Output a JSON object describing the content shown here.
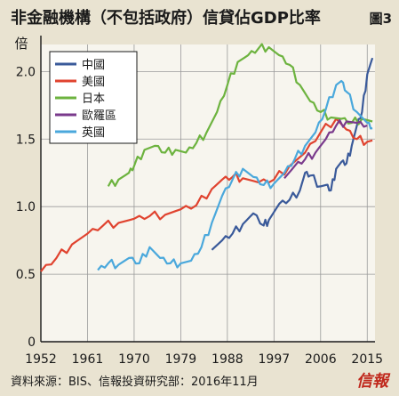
{
  "title": "非金融機構（不包括政府）信貸佔GDP比率",
  "figure_label": "圖3",
  "footer_source": "資料來源：BIS、信報投資研究部：2016年11月",
  "footer_logo": "信報",
  "colors": {
    "china": "#3a5a9a",
    "us": "#e0432f",
    "japan": "#6db33f",
    "euro": "#7a3a8c",
    "uk": "#4aa8dc"
  },
  "chart_data": {
    "type": "line",
    "title": "",
    "ylabel": "倍",
    "xlabel": "",
    "xlim": [
      1952,
      2016.5
    ],
    "ylim": [
      0,
      2.2
    ],
    "x_ticks": [
      1952,
      1961,
      1970,
      1979,
      1988,
      1997,
      2006,
      2015
    ],
    "y_ticks": [
      0,
      0.5,
      1.0,
      1.5,
      2.0
    ],
    "y_tick_labels": [
      "0",
      "0.5",
      "1.0",
      "1.5",
      "2.0"
    ],
    "grid": true,
    "legend_position": "top-left",
    "series": [
      {
        "name": "中國",
        "color": "#3a5a9a",
        "points": [
          [
            1985,
            0.68
          ],
          [
            1987,
            0.75
          ],
          [
            1989,
            0.8
          ],
          [
            1991,
            0.87
          ],
          [
            1993,
            0.95
          ],
          [
            1995,
            0.86
          ],
          [
            1996,
            0.9
          ],
          [
            1998,
            1.02
          ],
          [
            2000,
            1.05
          ],
          [
            2002,
            1.12
          ],
          [
            2003,
            1.25
          ],
          [
            2004,
            1.23
          ],
          [
            2006,
            1.15
          ],
          [
            2007,
            1.16
          ],
          [
            2008,
            1.12
          ],
          [
            2009,
            1.28
          ],
          [
            2010,
            1.33
          ],
          [
            2011,
            1.32
          ],
          [
            2012,
            1.45
          ],
          [
            2013,
            1.6
          ],
          [
            2014,
            1.7
          ],
          [
            2015,
            1.98
          ],
          [
            2016,
            2.1
          ]
        ]
      },
      {
        "name": "美國",
        "color": "#e0432f",
        "points": [
          [
            1952,
            0.52
          ],
          [
            1955,
            0.62
          ],
          [
            1958,
            0.72
          ],
          [
            1961,
            0.8
          ],
          [
            1964,
            0.86
          ],
          [
            1967,
            0.88
          ],
          [
            1970,
            0.91
          ],
          [
            1973,
            0.93
          ],
          [
            1976,
            0.94
          ],
          [
            1979,
            0.98
          ],
          [
            1982,
            1.01
          ],
          [
            1985,
            1.13
          ],
          [
            1987,
            1.2
          ],
          [
            1989,
            1.22
          ],
          [
            1991,
            1.21
          ],
          [
            1994,
            1.18
          ],
          [
            1997,
            1.2
          ],
          [
            2000,
            1.3
          ],
          [
            2003,
            1.4
          ],
          [
            2006,
            1.55
          ],
          [
            2009,
            1.65
          ],
          [
            2011,
            1.57
          ],
          [
            2013,
            1.5
          ],
          [
            2015,
            1.48
          ],
          [
            2016,
            1.49
          ]
        ]
      },
      {
        "name": "日本",
        "color": "#6db33f",
        "points": [
          [
            1965,
            1.15
          ],
          [
            1967,
            1.2
          ],
          [
            1969,
            1.25
          ],
          [
            1970,
            1.3
          ],
          [
            1972,
            1.42
          ],
          [
            1974,
            1.45
          ],
          [
            1976,
            1.4
          ],
          [
            1978,
            1.42
          ],
          [
            1980,
            1.4
          ],
          [
            1982,
            1.47
          ],
          [
            1984,
            1.55
          ],
          [
            1986,
            1.7
          ],
          [
            1988,
            1.9
          ],
          [
            1990,
            2.07
          ],
          [
            1992,
            2.12
          ],
          [
            1994,
            2.17
          ],
          [
            1996,
            2.18
          ],
          [
            1998,
            2.12
          ],
          [
            2000,
            2.05
          ],
          [
            2002,
            1.9
          ],
          [
            2004,
            1.78
          ],
          [
            2006,
            1.7
          ],
          [
            2008,
            1.66
          ],
          [
            2010,
            1.65
          ],
          [
            2012,
            1.62
          ],
          [
            2014,
            1.65
          ],
          [
            2016,
            1.63
          ]
        ]
      },
      {
        "name": "歐羅區",
        "color": "#7a3a8c",
        "points": [
          [
            1999,
            1.21
          ],
          [
            2001,
            1.3
          ],
          [
            2003,
            1.35
          ],
          [
            2005,
            1.4
          ],
          [
            2007,
            1.5
          ],
          [
            2009,
            1.6
          ],
          [
            2011,
            1.63
          ],
          [
            2013,
            1.62
          ],
          [
            2015,
            1.6
          ]
        ]
      },
      {
        "name": "英國",
        "color": "#4aa8dc",
        "points": [
          [
            1963,
            0.53
          ],
          [
            1965,
            0.58
          ],
          [
            1967,
            0.57
          ],
          [
            1969,
            0.62
          ],
          [
            1971,
            0.58
          ],
          [
            1973,
            0.7
          ],
          [
            1975,
            0.62
          ],
          [
            1977,
            0.58
          ],
          [
            1979,
            0.58
          ],
          [
            1981,
            0.6
          ],
          [
            1983,
            0.7
          ],
          [
            1985,
            0.88
          ],
          [
            1987,
            1.08
          ],
          [
            1989,
            1.2
          ],
          [
            1991,
            1.28
          ],
          [
            1993,
            1.22
          ],
          [
            1995,
            1.16
          ],
          [
            1997,
            1.17
          ],
          [
            1999,
            1.25
          ],
          [
            2001,
            1.35
          ],
          [
            2003,
            1.45
          ],
          [
            2005,
            1.55
          ],
          [
            2007,
            1.72
          ],
          [
            2009,
            1.9
          ],
          [
            2010,
            1.93
          ],
          [
            2011,
            1.85
          ],
          [
            2013,
            1.7
          ],
          [
            2015,
            1.62
          ],
          [
            2016,
            1.58
          ]
        ]
      }
    ]
  }
}
